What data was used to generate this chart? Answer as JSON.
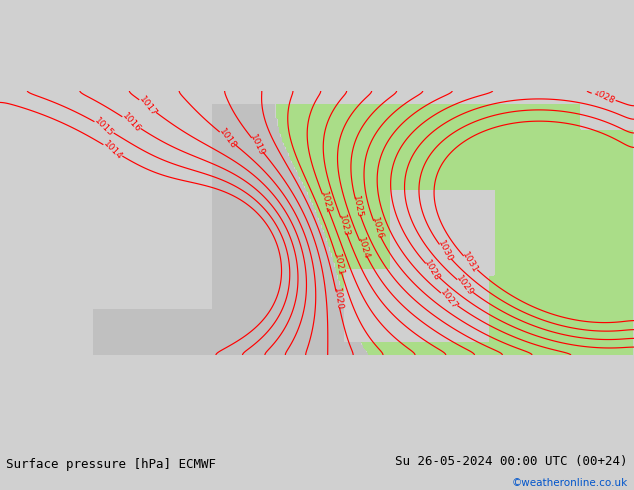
{
  "title_left": "Surface pressure [hPa] ECMWF",
  "title_right": "Su 26-05-2024 00:00 UTC (00+24)",
  "credit": "©weatheronline.co.uk",
  "bg_color": "#d0d0d0",
  "sea_color": "#d0d0d0",
  "land_gray_color": "#c0c0c0",
  "land_green_color": "#aadd88",
  "contour_color": "#ff0000",
  "coast_color": "#222222",
  "border_color": "#888888",
  "contour_levels": [
    1014,
    1015,
    1016,
    1017,
    1018,
    1019,
    1020,
    1021,
    1022,
    1023,
    1024,
    1025,
    1026,
    1027,
    1028,
    1029,
    1030,
    1031
  ],
  "green_threshold": 1020.5,
  "label_fontsize": 6.5,
  "title_fontsize": 9,
  "credit_fontsize": 7.5,
  "lon_min": -12,
  "lon_max": 36,
  "lat_min": 53,
  "lat_max": 73
}
